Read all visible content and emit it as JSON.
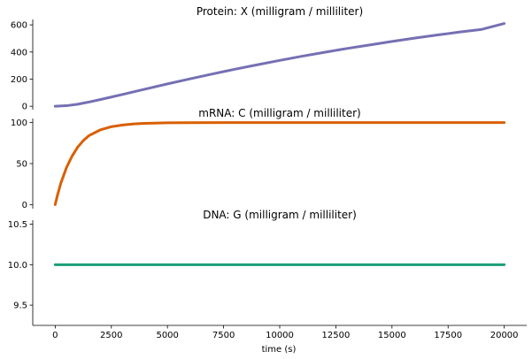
{
  "chart_data": {
    "type": "line",
    "xlabel": "time (s)",
    "xlim": [
      -1000,
      21000
    ],
    "xticks": [
      0,
      2500,
      5000,
      7500,
      10000,
      12500,
      15000,
      17500,
      20000
    ],
    "xtick_labels": [
      "0",
      "2500",
      "5000",
      "7500",
      "10000",
      "12500",
      "15000",
      "17500",
      "20000"
    ],
    "grid": false,
    "panels": [
      {
        "title": "Protein: X (milligram / milliliter)",
        "color": "#7570b3",
        "ylim": [
          -25,
          640
        ],
        "yticks": [
          0,
          200,
          400,
          600
        ],
        "ytick_labels": [
          "0",
          "200",
          "400",
          "600"
        ],
        "series": [
          {
            "x": [
              0,
              500,
              1000,
              1500,
              2000,
              2500,
              3000,
              4000,
              5000,
              6000,
              7000,
              8000,
              9000,
              10000,
              11000,
              12000,
              13000,
              14000,
              15000,
              16000,
              17000,
              18000,
              19000,
              20000
            ],
            "y": [
              0,
              4,
              15,
              31,
              49,
              68,
              87,
              126,
              165,
              202,
              238,
              273,
              306,
              338,
              369,
              398,
              426,
              452,
              478,
              502,
              525,
              547,
              567,
              610
            ]
          }
        ]
      },
      {
        "title": "mRNA: C (milligram / milliliter)",
        "color": "#d95f02",
        "ylim": [
          -5,
          105
        ],
        "yticks": [
          0,
          50,
          100
        ],
        "ytick_labels": [
          "0",
          "50",
          "100"
        ],
        "series": [
          {
            "x": [
              0,
              100,
              250,
              500,
              750,
              1000,
              1250,
              1500,
              2000,
              2500,
              3000,
              3500,
              4000,
              5000,
              6000,
              8000,
              10000,
              15000,
              20000
            ],
            "y": [
              0,
              11.3,
              26,
              45,
              59,
              70,
              78,
              84,
              91,
              95,
              97,
              98.4,
              99.1,
              99.7,
              99.9,
              100,
              100,
              100,
              100
            ]
          }
        ]
      },
      {
        "title": "DNA: G (milligram / milliliter)",
        "color": "#1b9e77",
        "ylim": [
          9.25,
          10.55
        ],
        "yticks": [
          9.5,
          10.0,
          10.5
        ],
        "ytick_labels": [
          "9.5",
          "10.0",
          "10.5"
        ],
        "series": [
          {
            "x": [
              0,
              20000
            ],
            "y": [
              10.0,
              10.0
            ]
          }
        ]
      }
    ]
  }
}
